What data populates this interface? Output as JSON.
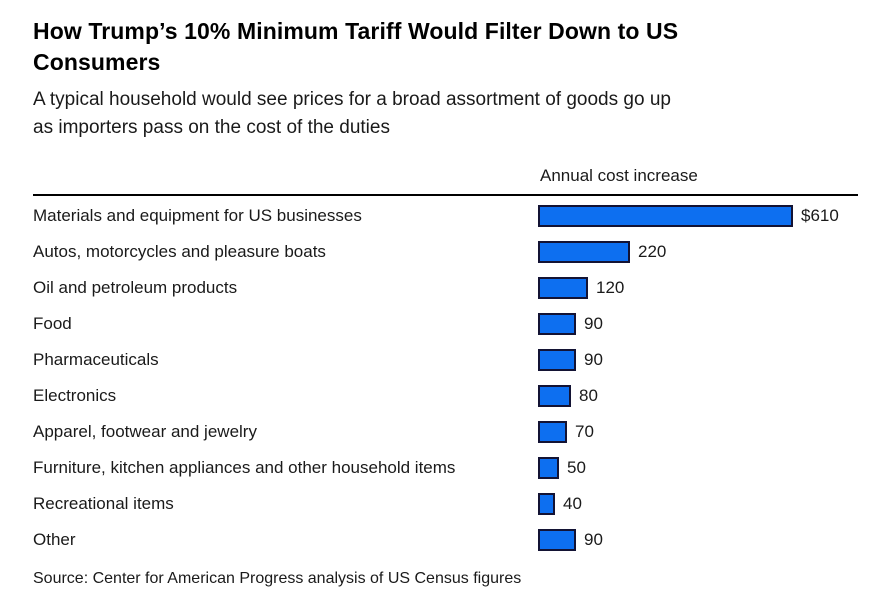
{
  "title": "How Trump’s 10% Minimum Tariff Would Filter Down to US Consumers",
  "title_lines": [
    "How Trump’s 10% Minimum Tariff Would Filter Down to US",
    "Consumers"
  ],
  "subtitle_lines": [
    "A typical household would see prices for a broad assortment of goods go up",
    "as importers pass on the cost of the duties"
  ],
  "column_header": "Annual cost increase",
  "source": "Source: Center for American Progress analysis of US Census figures",
  "colors": {
    "bar_fill": "#0d6ff0",
    "bar_border": "#131334",
    "rule": "#000000",
    "text": "#1a1a1a"
  },
  "chart_data": {
    "type": "bar",
    "orientation": "horizontal",
    "title": "How Trump’s 10% Minimum Tariff Would Filter Down to US Consumers",
    "subtitle": "A typical household would see prices for a broad assortment of goods go up as importers pass on the cost of the duties",
    "value_axis_label": "Annual cost increase",
    "categories": [
      "Materials and equipment for US businesses",
      "Autos, motorcycles and pleasure boats",
      "Oil and petroleum products",
      "Food",
      "Pharmaceuticals",
      "Electronics",
      "Apparel, footwear and jewelry",
      "Furniture, kitchen appliances and other household items",
      "Recreational items",
      "Other"
    ],
    "values": [
      610,
      220,
      120,
      90,
      90,
      80,
      70,
      50,
      40,
      90
    ],
    "value_labels": [
      "$610",
      "220",
      "120",
      "90",
      "90",
      "80",
      "70",
      "50",
      "40",
      "90"
    ],
    "xlim": [
      0,
      610
    ],
    "grid": false,
    "legend": false,
    "source": "Source: Center for American Progress analysis of US Census figures"
  }
}
